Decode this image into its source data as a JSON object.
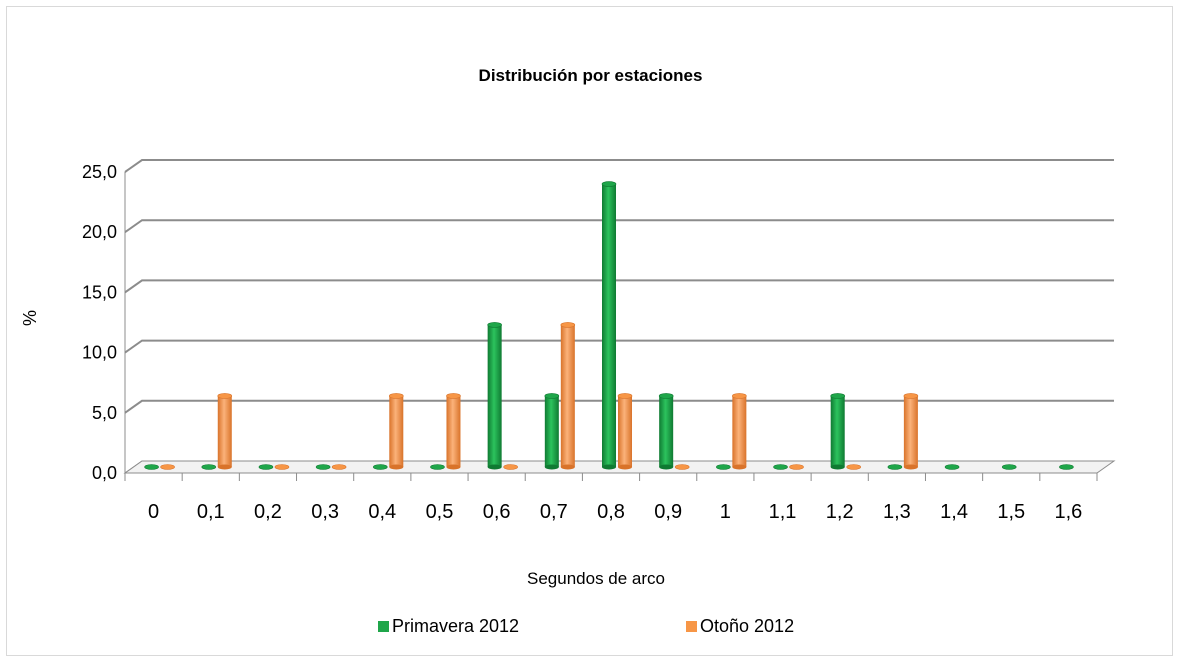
{
  "chart_data": {
    "type": "bar",
    "title": "Distribución por estaciones",
    "xlabel": "Segundos de arco",
    "ylabel": "%",
    "ylim": [
      0,
      25
    ],
    "yticks": [
      "0,0",
      "5,0",
      "10,0",
      "15,0",
      "20,0",
      "25,0"
    ],
    "categories": [
      "0",
      "0,1",
      "0,2",
      "0,3",
      "0,4",
      "0,5",
      "0,6",
      "0,7",
      "0,8",
      "0,9",
      "1",
      "1,1",
      "1,2",
      "1,3",
      "1,4",
      "1,5",
      "1,6"
    ],
    "series": [
      {
        "name": "Primavera 2012",
        "color": "#1fa64a",
        "values": [
          0,
          0,
          0,
          0,
          0,
          0,
          11.8,
          5.9,
          23.5,
          5.9,
          0,
          0,
          5.9,
          0,
          0,
          0,
          0
        ]
      },
      {
        "name": "Otoño 2012",
        "color": "#f79646",
        "values": [
          0,
          5.9,
          0,
          0,
          5.9,
          5.9,
          0,
          11.8,
          5.9,
          0,
          5.9,
          0,
          0,
          5.9,
          null,
          null,
          null
        ]
      }
    ],
    "grid": true,
    "legend_position": "bottom"
  }
}
